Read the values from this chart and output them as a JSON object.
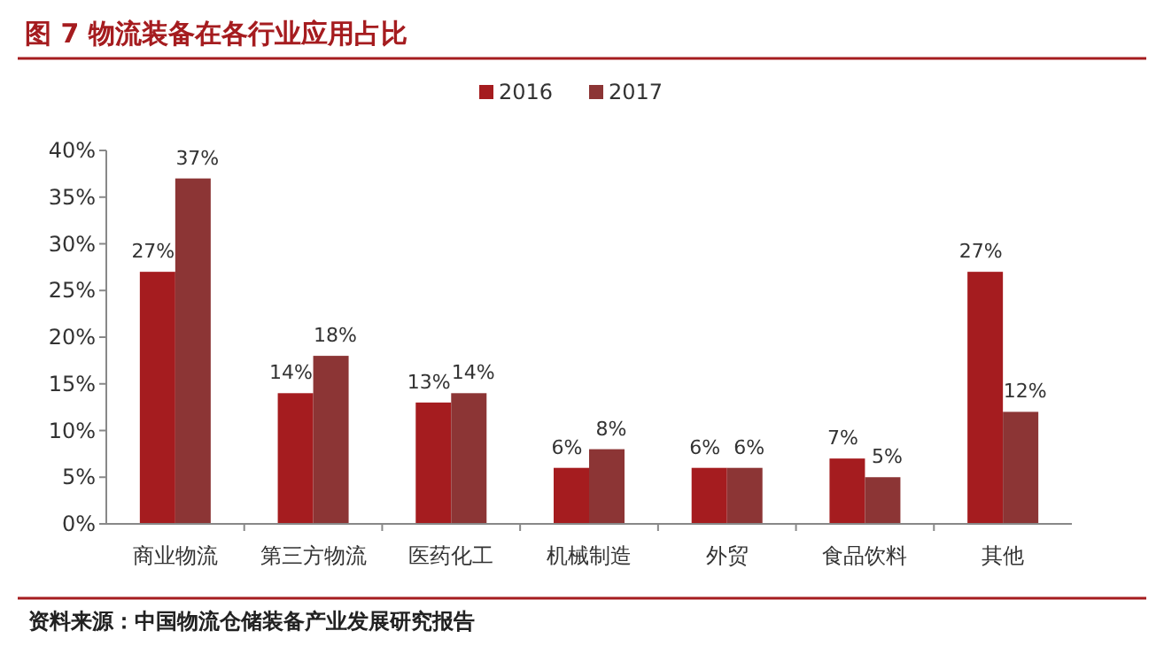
{
  "chart_data": {
    "type": "bar",
    "title": "图 7  物流装备在各行业应用占比",
    "categories": [
      "商业物流",
      "第三方物流",
      "医药化工",
      "机械制造",
      "外贸",
      "食品饮料",
      "其他"
    ],
    "series": [
      {
        "name": "2016",
        "color": "#a51c1f",
        "values": [
          27,
          14,
          13,
          6,
          6,
          7,
          27
        ],
        "value_labels": [
          "27%",
          "14%",
          "13%",
          "6%",
          "6%",
          "7%",
          "27%"
        ]
      },
      {
        "name": "2017",
        "color": "#8c3535",
        "values": [
          37,
          18,
          14,
          8,
          6,
          5,
          12
        ],
        "value_labels": [
          "37%",
          "18%",
          "14%",
          "8%",
          "6%",
          "5%",
          "12%"
        ]
      }
    ],
    "ylim": [
      0,
      40
    ],
    "yticks": [
      {
        "value": 0,
        "label": "0%"
      },
      {
        "value": 5,
        "label": "5%"
      },
      {
        "value": 10,
        "label": "10%"
      },
      {
        "value": 15,
        "label": "15%"
      },
      {
        "value": 20,
        "label": "20%"
      },
      {
        "value": 25,
        "label": "25%"
      },
      {
        "value": 30,
        "label": "30%"
      },
      {
        "value": 35,
        "label": "35%"
      },
      {
        "value": 40,
        "label": "40%"
      }
    ],
    "legend": "top",
    "annotations": [
      "资料来源：中国物流仓储装备产业发展研究报告"
    ]
  }
}
